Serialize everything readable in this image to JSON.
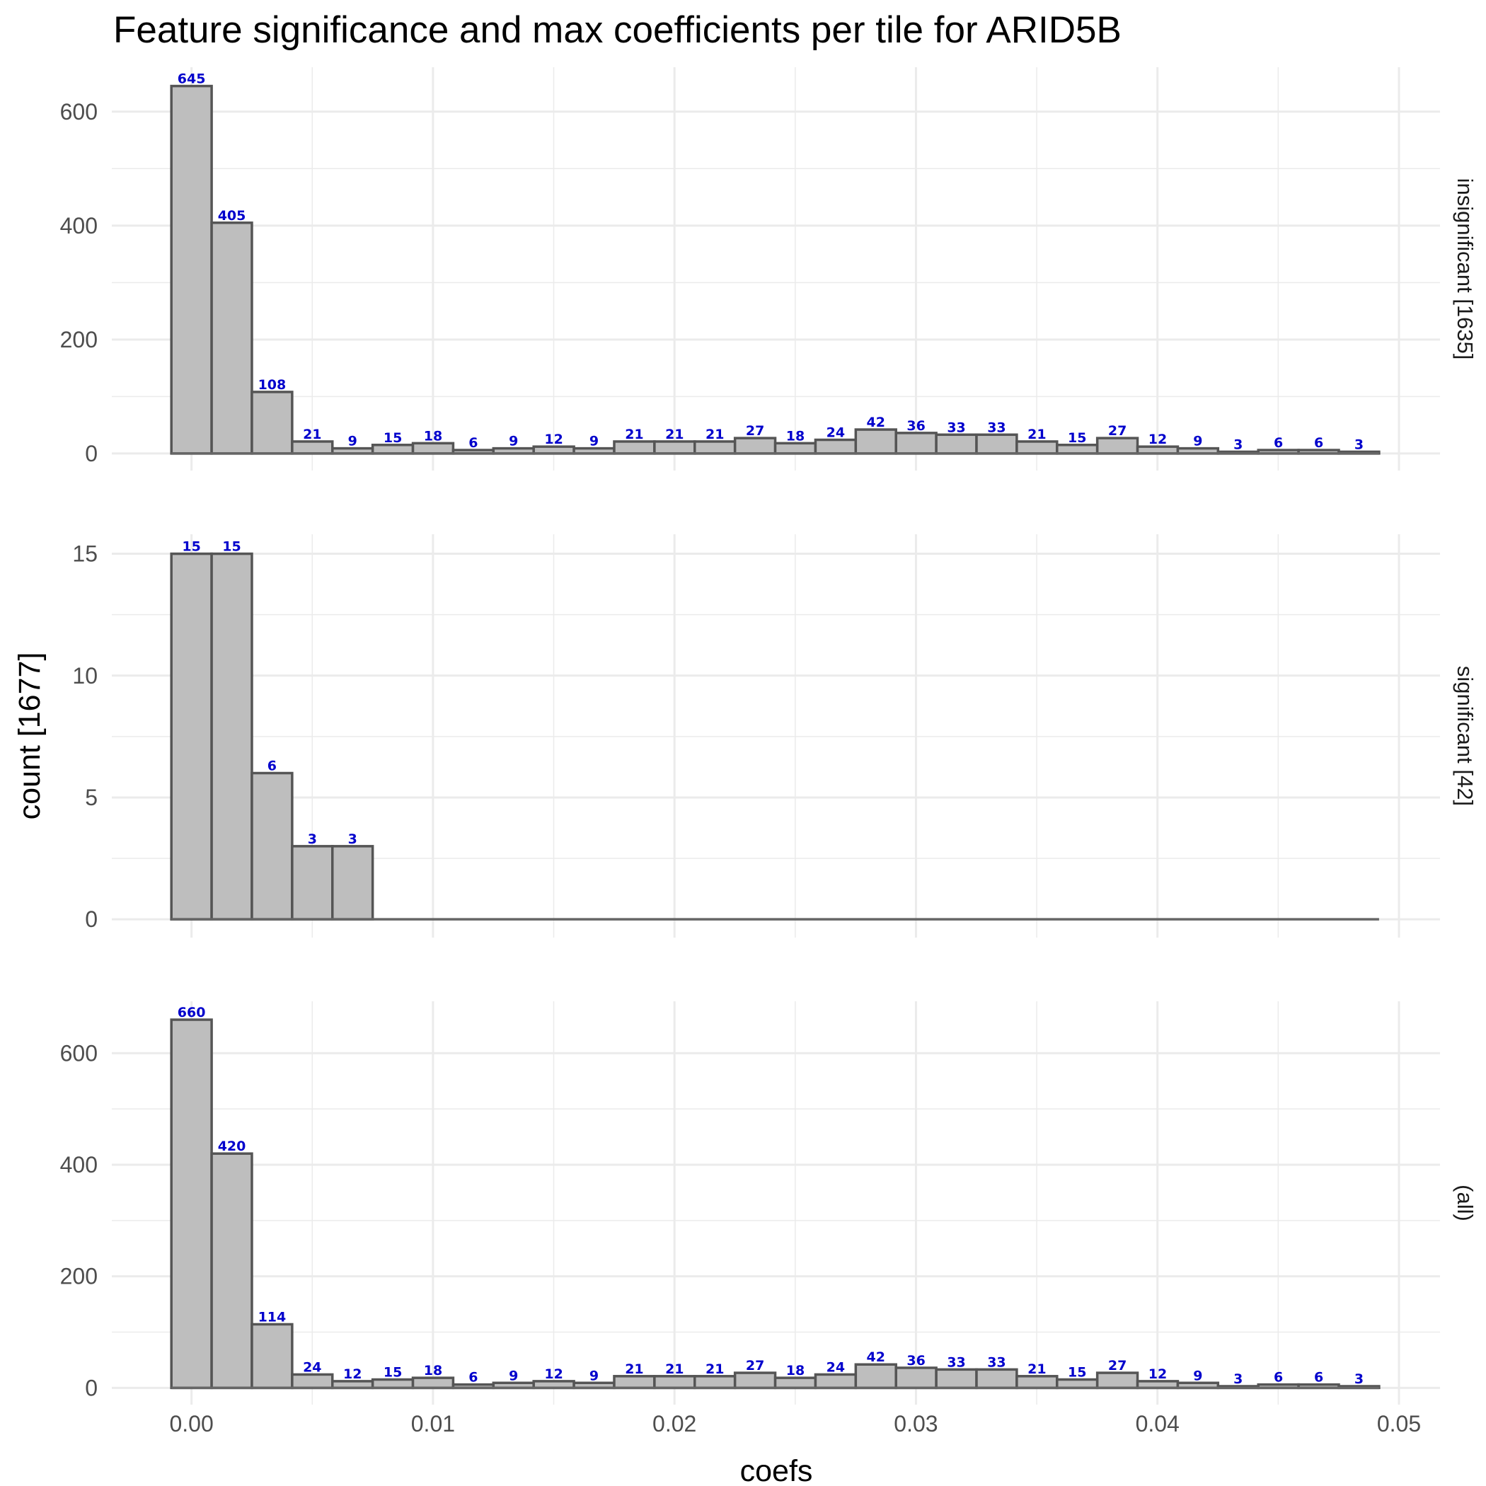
{
  "chart_data": {
    "type": "bar",
    "title": "Feature significance and max coefficients per tile for ARID5B",
    "xlabel": "coefs",
    "ylabel": "count [1677]",
    "xlim": [
      -0.0033,
      0.0517
    ],
    "x_ticks": [
      "0.00",
      "0.01",
      "0.02",
      "0.03",
      "0.04",
      "0.05"
    ],
    "x_tick_values": [
      0,
      0.01,
      0.02,
      0.03,
      0.04,
      0.05
    ],
    "bin_start": -0.000833,
    "bin_width": 0.001667,
    "grid": true,
    "panels": [
      {
        "strip": "insignificant [1635]",
        "ylim": [
          -30,
          678
        ],
        "y_ticks": [
          0,
          200,
          400,
          600
        ],
        "y_tick_labels": [
          "0",
          "200",
          "400",
          "600"
        ],
        "values": [
          645,
          405,
          108,
          21,
          9,
          15,
          18,
          6,
          9,
          12,
          9,
          21,
          21,
          21,
          27,
          18,
          24,
          42,
          36,
          33,
          33,
          21,
          15,
          27,
          12,
          9,
          3,
          6,
          6,
          3
        ]
      },
      {
        "strip": "significant [42]",
        "ylim": [
          -0.75,
          15.8
        ],
        "y_ticks": [
          0,
          5,
          10,
          15
        ],
        "y_tick_labels": [
          "0",
          "5",
          "10",
          "15"
        ],
        "values": [
          15,
          15,
          6,
          3,
          3,
          0,
          0,
          0,
          0,
          0,
          0,
          0,
          0,
          0,
          0,
          0,
          0,
          0,
          0,
          0,
          0,
          0,
          0,
          0,
          0,
          0,
          0,
          0,
          0,
          0
        ]
      },
      {
        "strip": "(all)",
        "ylim": [
          -30,
          693
        ],
        "y_ticks": [
          0,
          200,
          400,
          600
        ],
        "y_tick_labels": [
          "0",
          "200",
          "400",
          "600"
        ],
        "values": [
          660,
          420,
          114,
          24,
          12,
          15,
          18,
          6,
          9,
          12,
          9,
          21,
          21,
          21,
          27,
          18,
          24,
          42,
          36,
          33,
          33,
          21,
          15,
          27,
          12,
          9,
          3,
          6,
          6,
          3
        ]
      }
    ]
  }
}
